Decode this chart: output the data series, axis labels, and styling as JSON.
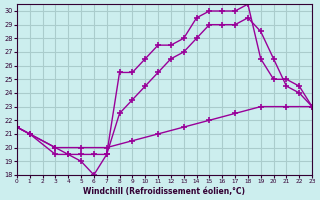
{
  "xlabel": "Windchill (Refroidissement éolien,°C)",
  "bg_color": "#cceeee",
  "line_color": "#990099",
  "grid_color": "#aacccc",
  "xlim": [
    0,
    23
  ],
  "ylim": [
    18,
    30.5
  ],
  "xticks": [
    0,
    1,
    2,
    3,
    4,
    5,
    6,
    7,
    8,
    9,
    10,
    11,
    12,
    13,
    14,
    15,
    16,
    17,
    18,
    19,
    20,
    21,
    22,
    23
  ],
  "yticks": [
    18,
    19,
    20,
    21,
    22,
    23,
    24,
    25,
    26,
    27,
    28,
    29,
    30
  ],
  "series": [
    {
      "x": [
        0,
        1,
        3,
        4,
        5,
        6,
        7,
        8,
        9,
        10,
        11,
        12,
        13,
        14,
        15,
        16,
        17,
        18,
        19,
        20,
        21,
        22,
        23
      ],
      "y": [
        21.5,
        21.0,
        19.5,
        19.5,
        19.0,
        18.0,
        19.5,
        25.5,
        25.5,
        26.5,
        27.5,
        27.5,
        28.0,
        29.5,
        30.0,
        30.0,
        30.0,
        30.5,
        26.5,
        25.0,
        25.0,
        24.5,
        23.0
      ]
    },
    {
      "x": [
        0,
        1,
        3,
        4,
        5,
        6,
        7,
        8,
        9,
        10,
        11,
        12,
        13,
        14,
        15,
        16,
        17,
        18,
        19,
        20,
        21,
        22,
        23
      ],
      "y": [
        21.5,
        21.0,
        20.0,
        19.5,
        19.5,
        19.5,
        19.5,
        22.5,
        23.5,
        24.5,
        25.5,
        26.5,
        27.0,
        28.0,
        29.0,
        29.0,
        29.0,
        29.5,
        28.5,
        26.5,
        24.5,
        24.0,
        23.0
      ]
    },
    {
      "x": [
        0,
        1,
        3,
        5,
        7,
        9,
        11,
        13,
        15,
        17,
        19,
        21,
        23
      ],
      "y": [
        21.5,
        21.0,
        20.0,
        20.0,
        20.0,
        20.5,
        21.0,
        21.5,
        22.0,
        22.5,
        23.0,
        23.0,
        23.0
      ]
    }
  ]
}
